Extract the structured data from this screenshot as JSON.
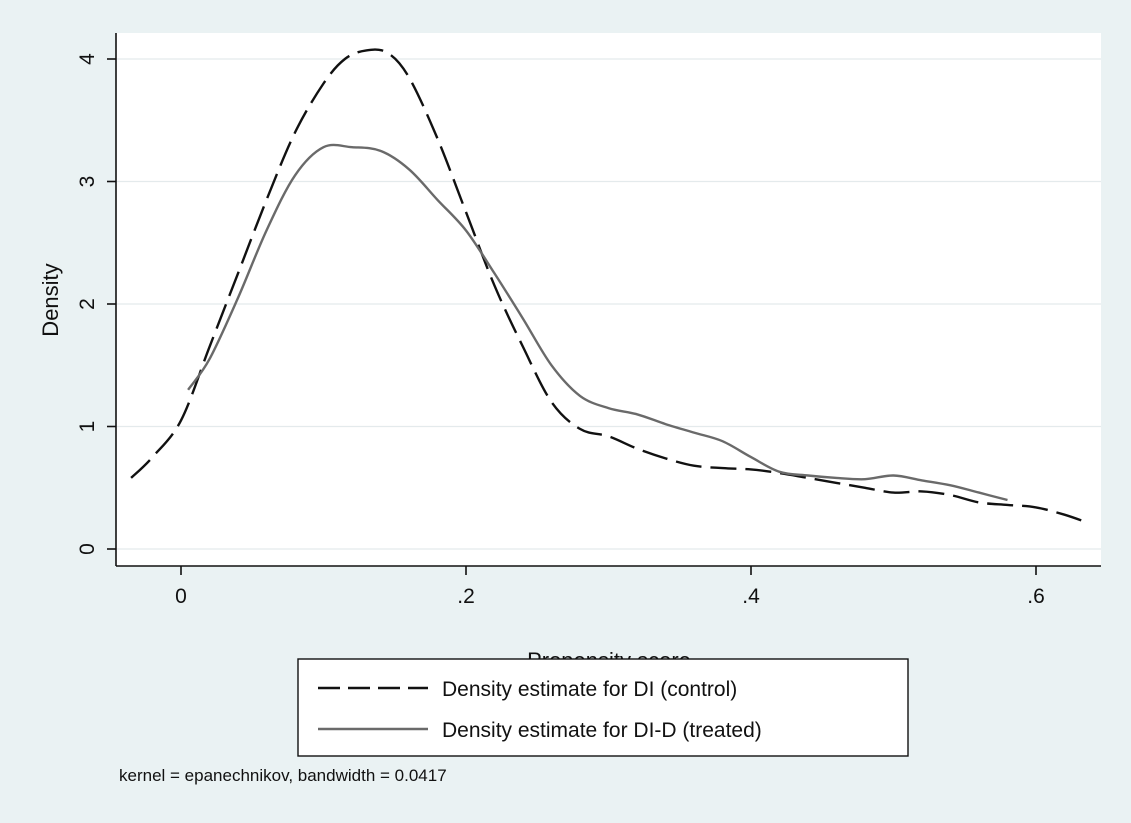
{
  "chart_data": {
    "type": "line",
    "title": "",
    "xlabel": "Propensity score",
    "ylabel": "Density",
    "xlim": [
      -0.04,
      0.64
    ],
    "ylim": [
      0,
      4.15
    ],
    "x_ticks": [
      0,
      0.2,
      0.4,
      0.6
    ],
    "x_tick_labels": [
      "0",
      ".2",
      ".4",
      ".6"
    ],
    "y_ticks": [
      0,
      1,
      2,
      3,
      4
    ],
    "y_tick_labels": [
      "0",
      "1",
      "2",
      "3",
      "4"
    ],
    "grid": "horizontal",
    "legend_position": "bottom",
    "note": "kernel = epanechnikov, bandwidth = 0.0417",
    "series": [
      {
        "name": "Density estimate for DI (control)",
        "style": "dashed",
        "color": "#111111",
        "x": [
          -0.035,
          -0.02,
          0.0,
          0.02,
          0.04,
          0.06,
          0.08,
          0.1,
          0.115,
          0.13,
          0.145,
          0.16,
          0.18,
          0.2,
          0.22,
          0.24,
          0.26,
          0.28,
          0.3,
          0.32,
          0.34,
          0.36,
          0.38,
          0.4,
          0.42,
          0.44,
          0.46,
          0.48,
          0.5,
          0.52,
          0.54,
          0.56,
          0.58,
          0.6,
          0.62,
          0.635
        ],
        "y": [
          0.58,
          0.75,
          1.05,
          1.65,
          2.25,
          2.85,
          3.4,
          3.8,
          4.0,
          4.07,
          4.05,
          3.85,
          3.35,
          2.75,
          2.15,
          1.65,
          1.2,
          0.98,
          0.92,
          0.82,
          0.74,
          0.68,
          0.66,
          0.65,
          0.62,
          0.58,
          0.54,
          0.5,
          0.46,
          0.47,
          0.44,
          0.38,
          0.36,
          0.34,
          0.28,
          0.22
        ]
      },
      {
        "name": "Density estimate for DI-D (treated)",
        "style": "solid",
        "color": "#6a6a6a",
        "x": [
          0.005,
          0.02,
          0.04,
          0.06,
          0.08,
          0.1,
          0.12,
          0.14,
          0.16,
          0.18,
          0.2,
          0.22,
          0.24,
          0.26,
          0.28,
          0.3,
          0.32,
          0.34,
          0.36,
          0.38,
          0.4,
          0.42,
          0.44,
          0.46,
          0.48,
          0.5,
          0.52,
          0.54,
          0.56,
          0.58
        ],
        "y": [
          1.3,
          1.55,
          2.05,
          2.6,
          3.05,
          3.28,
          3.28,
          3.25,
          3.1,
          2.85,
          2.6,
          2.25,
          1.88,
          1.5,
          1.25,
          1.15,
          1.1,
          1.02,
          0.95,
          0.88,
          0.75,
          0.63,
          0.6,
          0.58,
          0.57,
          0.6,
          0.56,
          0.52,
          0.46,
          0.4
        ]
      }
    ]
  }
}
